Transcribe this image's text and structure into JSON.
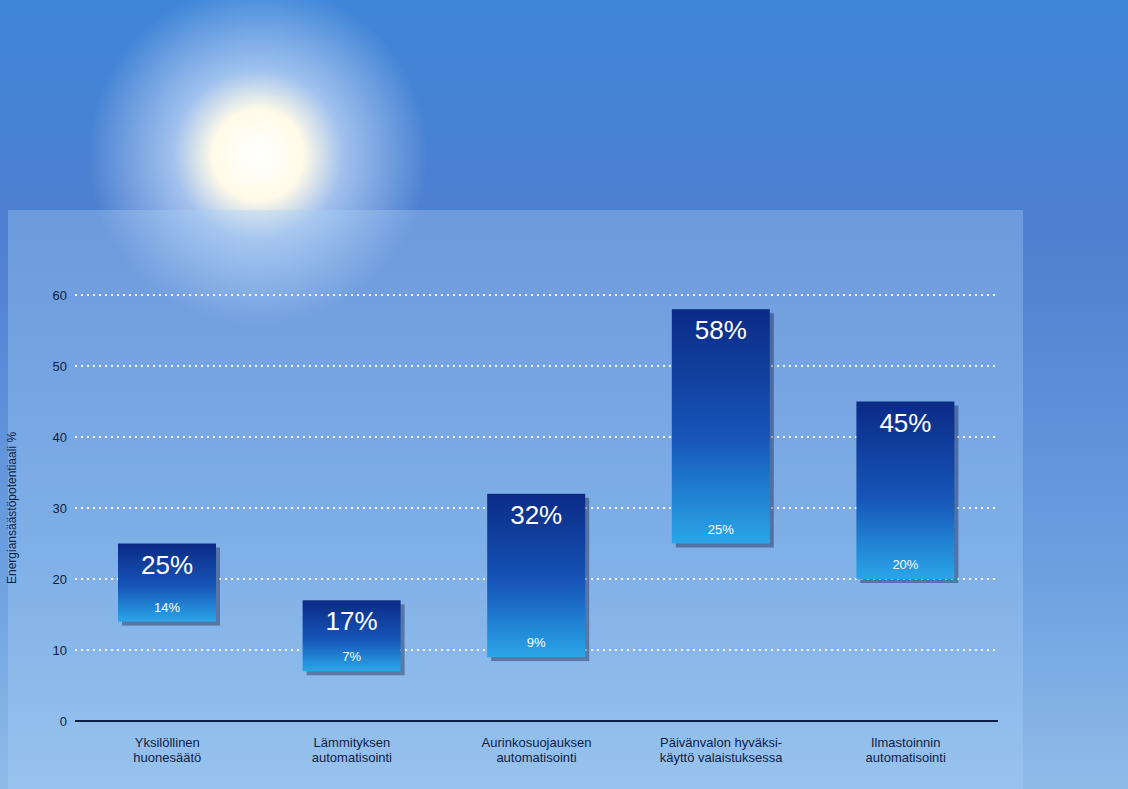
{
  "chart_data": {
    "type": "bar",
    "y_label": "Energiansäästöpotentiaali %",
    "categories": [
      "Yksilöllinen huonesäätö",
      "Lämmityksen automatisointi",
      "Aurinkosuojauksen automatisointi",
      "Päivänvalon hyväksi-käyttö valaistuksessa",
      "Ilmastoinnin automatisointi"
    ],
    "values": [
      [
        14,
        25
      ],
      [
        7,
        17
      ],
      [
        9,
        32
      ],
      [
        25,
        58
      ],
      [
        20,
        45
      ]
    ],
    "value_labels": [
      [
        "14%",
        "25%"
      ],
      [
        "7%",
        "17%"
      ],
      [
        "9%",
        "32%"
      ],
      [
        "25%",
        "58%"
      ],
      [
        "20%",
        "45%"
      ]
    ],
    "color": "#0b2a86",
    "ylim": [
      0,
      60
    ],
    "yticks": [
      0,
      10,
      20,
      30,
      40,
      50,
      60
    ],
    "grid": true,
    "data_labels": true
  }
}
